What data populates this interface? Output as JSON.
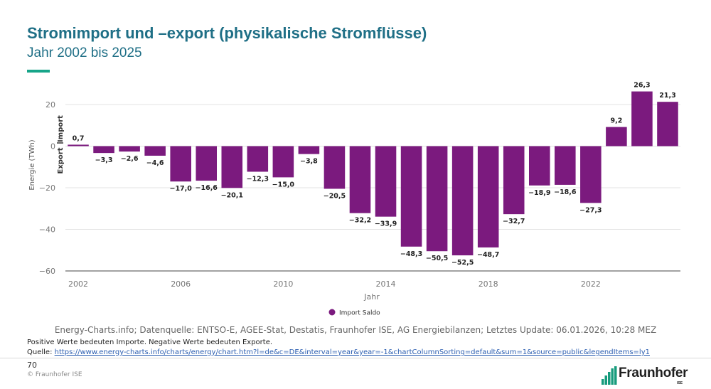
{
  "slide": {
    "title": "Stromimport und –export (physikalische Stromflüsse)",
    "subtitle": "Jahr 2002 bis 2025",
    "page_number": "70",
    "copyright": "© Fraunhofer ISE",
    "logo_text": "Fraunhofer",
    "logo_subtext": "ISE",
    "accent_color": "#17a589",
    "title_color": "#1f6f86"
  },
  "footer": {
    "datasource": "Energy-Charts.info; Datenquelle: ENTSO-E, AGEE-Stat, Destatis, Fraunhofer ISE, AG Energiebilanzen; Letztes Update: 06.01.2026, 10:28 MEZ",
    "note": "Positive Werte bedeuten Importe. Negative Werte bedeuten Exporte.",
    "source_label": "Quelle: ",
    "source_url": "https://www.energy-charts.info/charts/energy/chart.htm?l=de&c=DE&interval=year&year=-1&chartColumnSorting=default&sum=1&source=public&legendItems=ly1"
  },
  "chart_data": {
    "type": "bar",
    "title": "",
    "xlabel": "Jahr",
    "ylabel": "Energie (TWh)",
    "ylabel_export": "Export",
    "ylabel_import": "Import",
    "ylim": [
      -60,
      20
    ],
    "yticks": [
      20,
      0,
      -20,
      -40,
      -60
    ],
    "ytick_labels": [
      "20",
      "0",
      "−20",
      "−40",
      "−60"
    ],
    "xticks": [
      2002,
      2006,
      2010,
      2014,
      2018,
      2022
    ],
    "grid": true,
    "legend_position": "bottom-center",
    "bar_color": "#7b1a7e",
    "series": [
      {
        "name": "Import Saldo",
        "color": "#7b1a7e",
        "x": [
          2002,
          2003,
          2004,
          2005,
          2006,
          2007,
          2008,
          2009,
          2010,
          2011,
          2012,
          2013,
          2014,
          2015,
          2016,
          2017,
          2018,
          2019,
          2020,
          2021,
          2022,
          2023,
          2024,
          2025
        ],
        "values": [
          0.7,
          -3.3,
          -2.6,
          -4.6,
          -17.0,
          -16.6,
          -20.1,
          -12.3,
          -15.0,
          -3.8,
          -20.5,
          -32.2,
          -33.9,
          -48.3,
          -50.5,
          -52.5,
          -48.7,
          -32.7,
          -18.9,
          -18.6,
          -27.3,
          9.2,
          26.3,
          21.3
        ],
        "labels": [
          "0,7",
          "−3,3",
          "−2,6",
          "−4,6",
          "−17,0",
          "−16,6",
          "−20,1",
          "−12,3",
          "−15,0",
          "−3,8",
          "−20,5",
          "−32,2",
          "−33,9",
          "−48,3",
          "−50,5",
          "−52,5",
          "−48,7",
          "−32,7",
          "−18,9",
          "−18,6",
          "−27,3",
          "9,2",
          "26,3",
          "21,3"
        ]
      }
    ]
  }
}
